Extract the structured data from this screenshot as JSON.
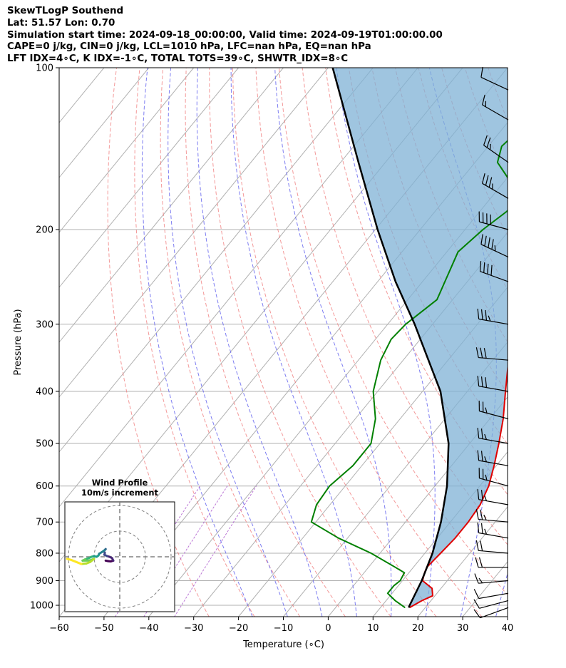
{
  "header": {
    "line1": "SkewTLogP Southend",
    "line2": "Lat: 51.57   Lon: 0.70",
    "line3": "Simulation start time: 2024-09-18_00:00:00, Valid time: 2024-09-19T01:00:00.00",
    "line4": "CAPE=0 j/kg, CIN=0 j/kg, LCL=1010 hPa, LFC=nan hPa, EQ=nan hPa",
    "line5": "LFT IDX=4∘C, K IDX=-1∘C, TOTAL TOTS=39∘C, SHWTR_IDX=8∘C"
  },
  "chart_data": {
    "type": "skewt-logp",
    "xlabel": "Temperature (∘C)",
    "ylabel": "Pressure (hPa)",
    "xlim": [
      -60,
      40
    ],
    "ylim": [
      1050,
      100
    ],
    "y_scale": "log",
    "xticks": [
      -60,
      -50,
      -40,
      -30,
      -20,
      -10,
      0,
      10,
      20,
      30,
      40
    ],
    "yticks": [
      1000,
      900,
      800,
      700,
      600,
      500,
      400,
      300,
      200,
      100
    ],
    "grid": true,
    "colors": {
      "temperature": "#e00000",
      "dewpoint": "#008000",
      "parcel": "#000000",
      "cape_fill": "#7fb1d6",
      "dry_adiabat": "#f08080",
      "moist_adiabat": "#6666ee",
      "mixing_ratio": "#aa55cc",
      "isotherm": "#b0b0b0"
    },
    "temperature": [
      [
        1010,
        16.5
      ],
      [
        980,
        18
      ],
      [
        960,
        19.5
      ],
      [
        930,
        18
      ],
      [
        900,
        14.5
      ],
      [
        870,
        13.5
      ],
      [
        850,
        13
      ],
      [
        800,
        13.5
      ],
      [
        750,
        14
      ],
      [
        700,
        14
      ],
      [
        650,
        13.5
      ],
      [
        600,
        12
      ],
      [
        550,
        9.5
      ],
      [
        500,
        6.5
      ],
      [
        450,
        3
      ],
      [
        400,
        -1.5
      ],
      [
        350,
        -6.5
      ],
      [
        300,
        -11
      ],
      [
        270,
        -13
      ],
      [
        250,
        -15
      ],
      [
        225,
        -18
      ],
      [
        210,
        -20
      ],
      [
        200,
        -19
      ],
      [
        185,
        -17
      ],
      [
        170,
        -16.5
      ],
      [
        160,
        -16
      ],
      [
        150,
        -16.5
      ],
      [
        140,
        -16
      ],
      [
        130,
        -14
      ],
      [
        120,
        -12
      ],
      [
        110,
        -11
      ],
      [
        100,
        -10
      ]
    ],
    "dewpoint": [
      [
        1010,
        15.5
      ],
      [
        980,
        12
      ],
      [
        950,
        9
      ],
      [
        920,
        9
      ],
      [
        900,
        9.5
      ],
      [
        870,
        9
      ],
      [
        850,
        6
      ],
      [
        800,
        -2
      ],
      [
        750,
        -12
      ],
      [
        700,
        -21
      ],
      [
        650,
        -23
      ],
      [
        600,
        -23.5
      ],
      [
        550,
        -22
      ],
      [
        500,
        -22
      ],
      [
        450,
        -25.5
      ],
      [
        400,
        -31
      ],
      [
        350,
        -35
      ],
      [
        320,
        -36.5
      ],
      [
        300,
        -36
      ],
      [
        270,
        -33.5
      ],
      [
        250,
        -35
      ],
      [
        220,
        -37.5
      ],
      [
        200,
        -36
      ],
      [
        185,
        -34
      ],
      [
        170,
        -34
      ],
      [
        160,
        -40
      ],
      [
        150,
        -45
      ],
      [
        140,
        -47
      ],
      [
        130,
        -46
      ],
      [
        120,
        -45
      ],
      [
        110,
        -43
      ],
      [
        100,
        -41
      ]
    ],
    "parcel": [
      [
        1010,
        16.3
      ],
      [
        1000,
        16.1
      ],
      [
        900,
        14.3
      ],
      [
        800,
        11.7
      ],
      [
        700,
        7.9
      ],
      [
        600,
        2.7
      ],
      [
        500,
        -4.7
      ],
      [
        400,
        -16
      ],
      [
        300,
        -34
      ],
      [
        250,
        -46
      ],
      [
        200,
        -59.5
      ],
      [
        150,
        -76
      ],
      [
        100,
        -99
      ]
    ],
    "wind_barbs": [
      {
        "p": 1010,
        "dir": 250,
        "speed": 10
      },
      {
        "p": 980,
        "dir": 255,
        "speed": 12
      },
      {
        "p": 950,
        "dir": 260,
        "speed": 12
      },
      {
        "p": 900,
        "dir": 265,
        "speed": 15
      },
      {
        "p": 850,
        "dir": 270,
        "speed": 20
      },
      {
        "p": 800,
        "dir": 275,
        "speed": 22
      },
      {
        "p": 750,
        "dir": 280,
        "speed": 25
      },
      {
        "p": 700,
        "dir": 275,
        "speed": 25
      },
      {
        "p": 650,
        "dir": 280,
        "speed": 25
      },
      {
        "p": 600,
        "dir": 285,
        "speed": 25
      },
      {
        "p": 550,
        "dir": 280,
        "speed": 25
      },
      {
        "p": 500,
        "dir": 280,
        "speed": 25
      },
      {
        "p": 450,
        "dir": 285,
        "speed": 25
      },
      {
        "p": 400,
        "dir": 280,
        "speed": 30
      },
      {
        "p": 350,
        "dir": 275,
        "speed": 30
      },
      {
        "p": 300,
        "dir": 280,
        "speed": 35
      },
      {
        "p": 250,
        "dir": 290,
        "speed": 40
      },
      {
        "p": 225,
        "dir": 295,
        "speed": 45
      },
      {
        "p": 200,
        "dir": 285,
        "speed": 40
      },
      {
        "p": 175,
        "dir": 300,
        "speed": 35
      },
      {
        "p": 150,
        "dir": 305,
        "speed": 25
      },
      {
        "p": 125,
        "dir": 300,
        "speed": 15
      },
      {
        "p": 110,
        "dir": 295,
        "speed": 10
      }
    ],
    "hodograph": {
      "title_line1": "Wind Profile",
      "title_line2": "10m/s increment",
      "ring_step_ms": 10,
      "points_uv": [
        [
          -5.5,
          -1.5
        ],
        [
          -4.5,
          -1.7
        ],
        [
          -3.5,
          -1.8
        ],
        [
          -2.5,
          -1.5
        ],
        [
          -3,
          -0.5
        ],
        [
          -4,
          0
        ],
        [
          -5,
          0.3
        ],
        [
          -6,
          0.8
        ],
        [
          -5.8,
          1.5
        ],
        [
          -6.2,
          2.2
        ],
        [
          -5.5,
          3
        ],
        [
          -6,
          2.5
        ],
        [
          -7,
          1.8
        ],
        [
          -8,
          1.2
        ],
        [
          -8.3,
          0.5
        ],
        [
          -9,
          0
        ],
        [
          -10,
          0.2
        ],
        [
          -11,
          0
        ],
        [
          -12,
          -0.5
        ],
        [
          -13.5,
          -1
        ],
        [
          -14.5,
          -1.5
        ],
        [
          -12,
          -1.5
        ],
        [
          -10,
          -0.8
        ],
        [
          -11.5,
          -2
        ],
        [
          -13,
          -2.6
        ],
        [
          -15,
          -2.8
        ],
        [
          -17,
          -2
        ],
        [
          -19,
          -1.2
        ],
        [
          -20.5,
          -0.8
        ]
      ]
    }
  }
}
